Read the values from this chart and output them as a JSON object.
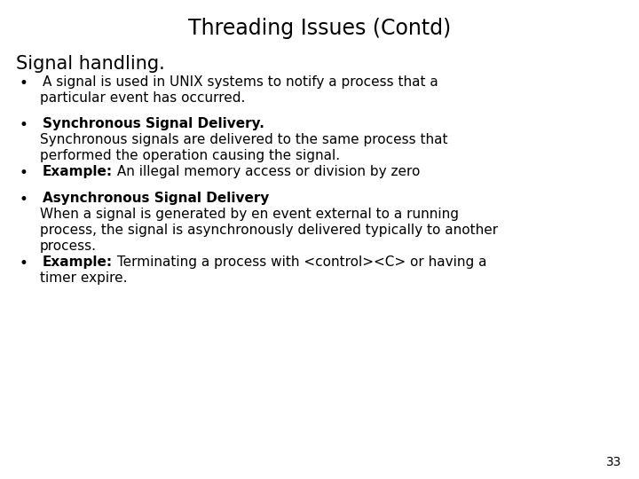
{
  "title": "Threading Issues (Contd)",
  "background_color": "#ffffff",
  "text_color": "#000000",
  "title_fontsize": 17,
  "body_fontsize": 11,
  "section_heading": "Signal handling.",
  "section_heading_fontsize": 15,
  "page_number": "33",
  "page_number_fontsize": 10
}
